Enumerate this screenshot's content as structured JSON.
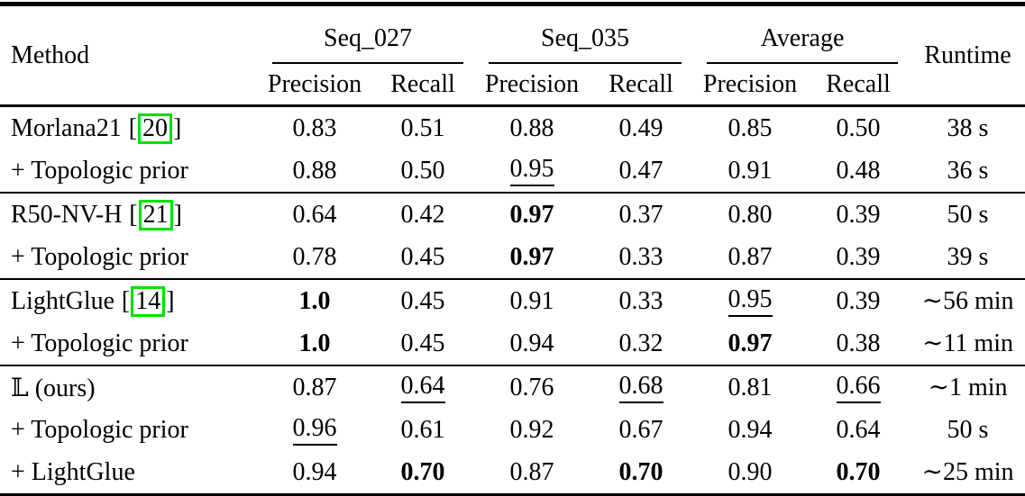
{
  "misc": {
    "bracket_open": "[",
    "bracket_close": "]"
  },
  "colors": {
    "citation_box": "#00e000",
    "rule": "#000000"
  },
  "table": {
    "header": {
      "method": "Method",
      "runtime": "Runtime",
      "groups": [
        {
          "label": "Seq_027"
        },
        {
          "label": "Seq_035"
        },
        {
          "label": "Average"
        }
      ],
      "sub": [
        "Precision",
        "Recall",
        "Precision",
        "Recall",
        "Precision",
        "Recall"
      ]
    },
    "body": [
      {
        "rows": [
          {
            "method": "Morlana21",
            "cite": "20",
            "cells": [
              {
                "v": "0.83"
              },
              {
                "v": "0.51"
              },
              {
                "v": "0.88"
              },
              {
                "v": "0.49"
              },
              {
                "v": "0.85"
              },
              {
                "v": "0.50"
              },
              {
                "v": "38 s"
              }
            ]
          },
          {
            "method": "+ Topologic prior",
            "cells": [
              {
                "v": "0.88"
              },
              {
                "v": "0.50"
              },
              {
                "v": "0.95",
                "s": "u"
              },
              {
                "v": "0.47"
              },
              {
                "v": "0.91"
              },
              {
                "v": "0.48"
              },
              {
                "v": "36 s"
              }
            ]
          }
        ]
      },
      {
        "rows": [
          {
            "method": "R50-NV-H",
            "cite": "21",
            "cells": [
              {
                "v": "0.64"
              },
              {
                "v": "0.42"
              },
              {
                "v": "0.97",
                "s": "b"
              },
              {
                "v": "0.37"
              },
              {
                "v": "0.80"
              },
              {
                "v": "0.39"
              },
              {
                "v": "50 s"
              }
            ]
          },
          {
            "method": "+ Topologic prior",
            "cells": [
              {
                "v": "0.78"
              },
              {
                "v": "0.45"
              },
              {
                "v": "0.97",
                "s": "b"
              },
              {
                "v": "0.33"
              },
              {
                "v": "0.87"
              },
              {
                "v": "0.39"
              },
              {
                "v": "39 s"
              }
            ]
          }
        ]
      },
      {
        "rows": [
          {
            "method": "LightGlue",
            "cite": "14",
            "cells": [
              {
                "v": "1.0",
                "s": "b"
              },
              {
                "v": "0.45"
              },
              {
                "v": "0.91"
              },
              {
                "v": "0.33"
              },
              {
                "v": "0.95",
                "s": "u"
              },
              {
                "v": "0.39"
              },
              {
                "v": "∼56 min"
              }
            ]
          },
          {
            "method": "+ Topologic prior",
            "cells": [
              {
                "v": "1.0",
                "s": "b"
              },
              {
                "v": "0.45"
              },
              {
                "v": "0.94"
              },
              {
                "v": "0.32"
              },
              {
                "v": "0.97",
                "s": "b"
              },
              {
                "v": "0.38"
              },
              {
                "v": "∼11 min"
              }
            ]
          }
        ]
      },
      {
        "rows": [
          {
            "method": "𝕃 (ours)",
            "cells": [
              {
                "v": "0.87"
              },
              {
                "v": "0.64",
                "s": "u"
              },
              {
                "v": "0.76"
              },
              {
                "v": "0.68",
                "s": "u"
              },
              {
                "v": "0.81"
              },
              {
                "v": "0.66",
                "s": "u"
              },
              {
                "v": "∼1 min"
              }
            ]
          },
          {
            "method": "+ Topologic prior",
            "cells": [
              {
                "v": "0.96",
                "s": "u"
              },
              {
                "v": "0.61"
              },
              {
                "v": "0.92"
              },
              {
                "v": "0.67"
              },
              {
                "v": "0.94"
              },
              {
                "v": "0.64"
              },
              {
                "v": "50 s"
              }
            ]
          },
          {
            "method": "+ LightGlue",
            "cells": [
              {
                "v": "0.94"
              },
              {
                "v": "0.70",
                "s": "b"
              },
              {
                "v": "0.87"
              },
              {
                "v": "0.70",
                "s": "b"
              },
              {
                "v": "0.90"
              },
              {
                "v": "0.70",
                "s": "b"
              },
              {
                "v": "∼25 min"
              }
            ]
          }
        ]
      }
    ]
  }
}
